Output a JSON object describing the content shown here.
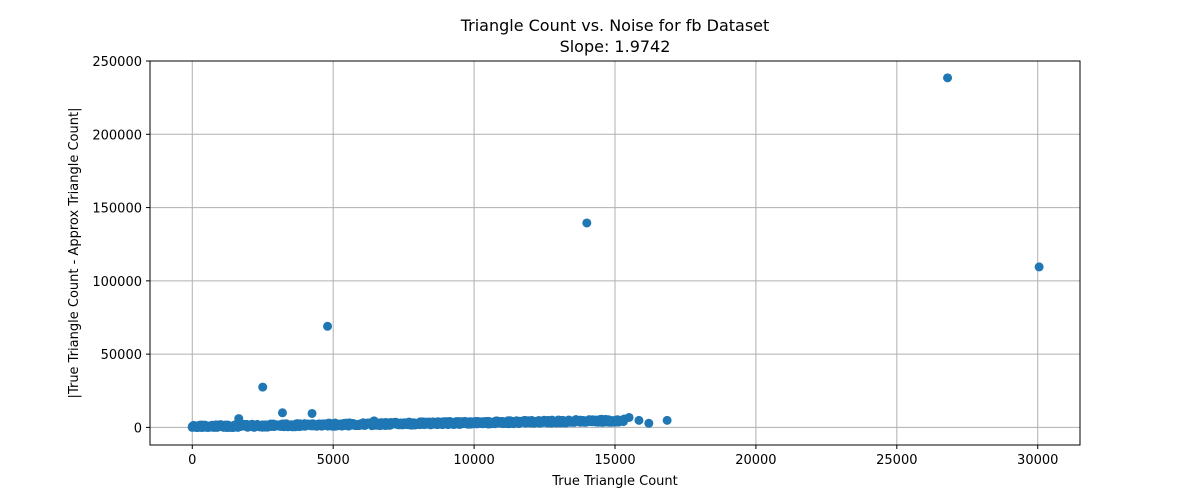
{
  "chart_data": {
    "type": "scatter",
    "title": "Triangle Count vs. Noise for fb Dataset",
    "subtitle": "Slope: 1.9742",
    "xlabel": "True Triangle Count",
    "ylabel": "|True Triangle Count - Approx Triangle Count|",
    "xlim": [
      -1500,
      31500
    ],
    "ylim": [
      -12000,
      250000
    ],
    "xticks": [
      0,
      5000,
      10000,
      15000,
      20000,
      25000,
      30000
    ],
    "yticks": [
      0,
      50000,
      100000,
      150000,
      200000,
      250000
    ],
    "grid": true,
    "color": "#1f77b4",
    "outliers": [
      {
        "x": 26800,
        "y": 238500
      },
      {
        "x": 14000,
        "y": 139500
      },
      {
        "x": 30050,
        "y": 109500
      },
      {
        "x": 4800,
        "y": 69000
      },
      {
        "x": 2500,
        "y": 27500
      },
      {
        "x": 3200,
        "y": 10000
      },
      {
        "x": 4250,
        "y": 9500
      },
      {
        "x": 1650,
        "y": 6000
      },
      {
        "x": 6450,
        "y": 4500
      },
      {
        "x": 15500,
        "y": 6800
      },
      {
        "x": 15850,
        "y": 4800
      },
      {
        "x": 16850,
        "y": 4800
      },
      {
        "x": 16200,
        "y": 2800
      },
      {
        "x": 14750,
        "y": 5000
      }
    ],
    "cluster": {
      "x_range": [
        0,
        15300
      ],
      "y_start": 500,
      "y_end": 4700,
      "count": 700
    }
  }
}
